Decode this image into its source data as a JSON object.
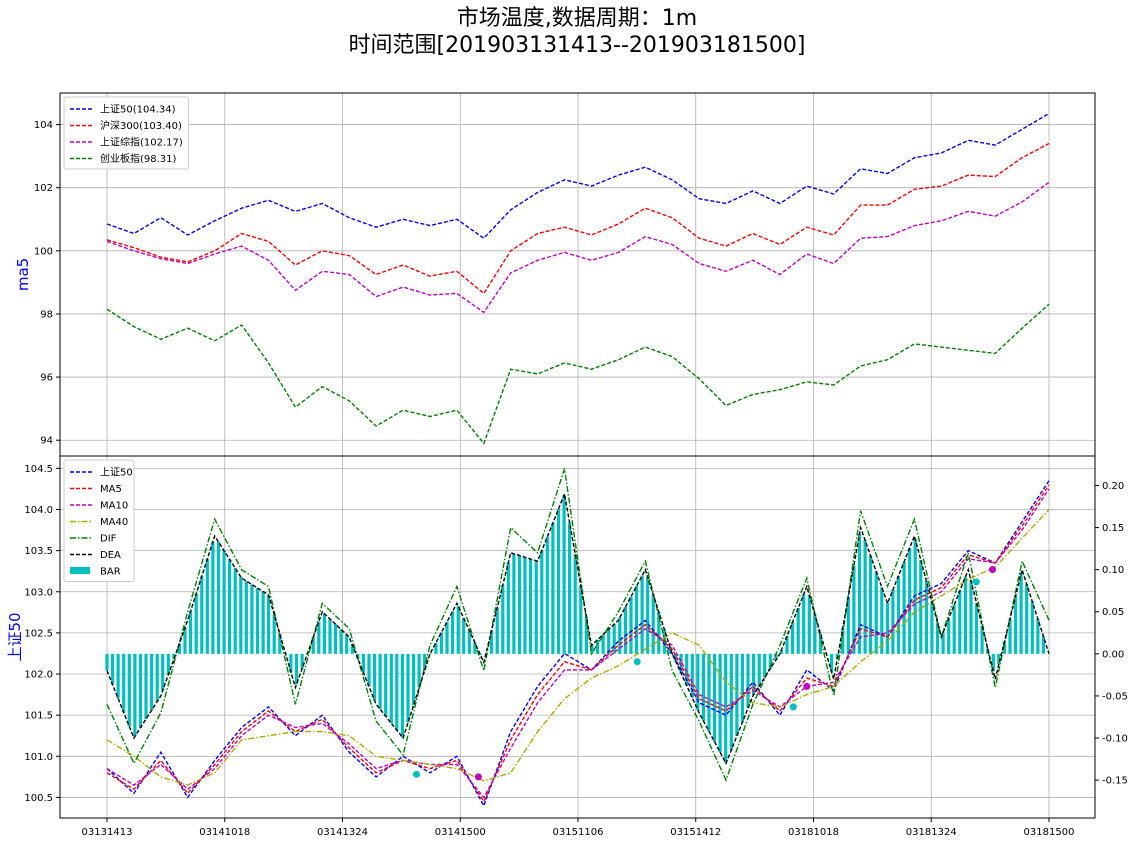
{
  "title_line1": "市场温度,数据周期：1m",
  "title_line2": "时间范围[201903131413--201903181500]",
  "chart_data": [
    {
      "type": "line",
      "ylabel": "ma5",
      "ylim": [
        93.5,
        105.0
      ],
      "yticks": [
        94,
        96,
        98,
        100,
        102,
        104
      ],
      "xticks": [
        "03131413",
        "03141018",
        "03141324",
        "03141500",
        "03151106",
        "03151412",
        "03181018",
        "03181324",
        "03181500"
      ],
      "legend_position": "upper-left",
      "grid": true,
      "series": [
        {
          "name": "上证50(104.34)",
          "color": "#0000ff",
          "values": [
            100.85,
            100.55,
            101.05,
            100.5,
            100.95,
            101.35,
            101.6,
            101.25,
            101.5,
            101.05,
            100.75,
            101.0,
            100.8,
            101.0,
            100.4,
            101.3,
            101.85,
            102.25,
            102.05,
            102.4,
            102.65,
            102.25,
            101.65,
            101.5,
            101.9,
            101.5,
            102.05,
            101.8,
            102.6,
            102.45,
            102.95,
            103.1,
            103.5,
            103.35,
            103.85,
            104.35
          ]
        },
        {
          "name": "沪深300(103.40)",
          "color": "#ff0000",
          "values": [
            100.35,
            100.1,
            99.8,
            99.65,
            100.0,
            100.55,
            100.3,
            99.55,
            100.0,
            99.85,
            99.25,
            99.55,
            99.2,
            99.35,
            98.65,
            100.0,
            100.55,
            100.75,
            100.5,
            100.85,
            101.35,
            101.05,
            100.4,
            100.15,
            100.55,
            100.2,
            100.75,
            100.5,
            101.45,
            101.45,
            101.95,
            102.05,
            102.4,
            102.35,
            102.95,
            103.4
          ]
        },
        {
          "name": "上证综指(102.17)",
          "color": "#bf00bf",
          "values": [
            100.3,
            100.0,
            99.75,
            99.6,
            99.9,
            100.15,
            99.7,
            98.75,
            99.35,
            99.25,
            98.55,
            98.85,
            98.6,
            98.65,
            98.05,
            99.3,
            99.7,
            99.95,
            99.7,
            99.95,
            100.45,
            100.2,
            99.6,
            99.35,
            99.7,
            99.25,
            99.9,
            99.6,
            100.4,
            100.45,
            100.8,
            100.95,
            101.25,
            101.1,
            101.55,
            102.17
          ]
        },
        {
          "name": "创业板指(98.31)",
          "color": "#008000",
          "values": [
            98.15,
            97.6,
            97.2,
            97.55,
            97.15,
            97.65,
            96.45,
            95.05,
            95.7,
            95.25,
            94.45,
            94.95,
            94.75,
            94.95,
            93.9,
            96.25,
            96.1,
            96.45,
            96.25,
            96.55,
            96.95,
            96.65,
            95.95,
            95.1,
            95.45,
            95.6,
            95.85,
            95.75,
            96.35,
            96.55,
            97.05,
            96.95,
            96.85,
            96.75,
            97.55,
            98.31
          ]
        }
      ]
    },
    {
      "type": "line",
      "ylabel": "上证50",
      "ylim": [
        100.25,
        104.65
      ],
      "yticks": [
        100.5,
        101.0,
        101.5,
        102.0,
        102.5,
        103.0,
        103.5,
        104.0,
        104.5
      ],
      "y2lim": [
        -0.195,
        0.235
      ],
      "y2ticks": [
        "0.20",
        "0.15",
        "0.10",
        "0.05",
        "0.00",
        "-0.05",
        "-0.10",
        "-0.15"
      ],
      "xticks": [
        "03131413",
        "03141018",
        "03141324",
        "03141500",
        "03151106",
        "03151412",
        "03181018",
        "03181324",
        "03181500"
      ],
      "legend_position": "upper-left",
      "grid": true,
      "series": [
        {
          "name": "上证50",
          "color": "#0000ff",
          "values": [
            100.85,
            100.55,
            101.05,
            100.5,
            100.95,
            101.35,
            101.6,
            101.25,
            101.5,
            101.05,
            100.75,
            101.0,
            100.8,
            101.0,
            100.4,
            101.3,
            101.85,
            102.25,
            102.05,
            102.4,
            102.65,
            102.25,
            101.65,
            101.5,
            101.9,
            101.5,
            102.05,
            101.8,
            102.6,
            102.45,
            102.95,
            103.1,
            103.5,
            103.35,
            103.85,
            104.35
          ]
        },
        {
          "name": "MA5",
          "color": "#ff0000",
          "values": [
            100.8,
            100.6,
            100.95,
            100.55,
            100.9,
            101.3,
            101.55,
            101.3,
            101.45,
            101.1,
            100.8,
            100.95,
            100.85,
            100.95,
            100.45,
            101.2,
            101.75,
            102.15,
            102.05,
            102.35,
            102.6,
            102.3,
            101.7,
            101.55,
            101.85,
            101.55,
            101.95,
            101.85,
            102.55,
            102.45,
            102.9,
            103.05,
            103.45,
            103.35,
            103.8,
            104.3
          ]
        },
        {
          "name": "MA10",
          "color": "#bf00bf",
          "values": [
            100.85,
            100.65,
            100.9,
            100.6,
            100.85,
            101.25,
            101.5,
            101.35,
            101.4,
            101.15,
            100.85,
            100.95,
            100.9,
            100.9,
            100.5,
            101.1,
            101.65,
            102.05,
            102.05,
            102.3,
            102.55,
            102.35,
            101.75,
            101.6,
            101.8,
            101.6,
            101.85,
            101.9,
            102.45,
            102.5,
            102.85,
            103.0,
            103.4,
            103.35,
            103.75,
            104.25
          ]
        },
        {
          "name": "MA40",
          "color": "#aaaa00",
          "values": [
            101.2,
            101.0,
            100.75,
            100.65,
            100.8,
            101.2,
            101.25,
            101.3,
            101.3,
            101.25,
            101.0,
            100.95,
            100.9,
            100.85,
            100.7,
            100.8,
            101.3,
            101.7,
            101.95,
            102.1,
            102.3,
            102.5,
            102.35,
            101.9,
            101.65,
            101.6,
            101.75,
            101.85,
            102.15,
            102.4,
            102.75,
            102.95,
            103.15,
            103.3,
            103.65,
            104.0
          ]
        },
        {
          "name": "DIF",
          "color": "#008000",
          "values": [
            -0.06,
            -0.13,
            -0.07,
            0.05,
            0.16,
            0.1,
            0.08,
            -0.06,
            0.06,
            0.03,
            -0.08,
            -0.12,
            0.01,
            0.08,
            -0.02,
            0.15,
            0.12,
            0.22,
            0.0,
            0.05,
            0.11,
            -0.02,
            -0.08,
            -0.15,
            -0.06,
            0.01,
            0.09,
            -0.05,
            0.17,
            0.08,
            0.16,
            0.02,
            0.12,
            -0.04,
            0.11,
            0.04
          ]
        },
        {
          "name": "DEA",
          "color": "#000000",
          "values": [
            -0.02,
            -0.1,
            -0.05,
            0.04,
            0.14,
            0.09,
            0.07,
            -0.04,
            0.05,
            0.02,
            -0.06,
            -0.1,
            0.0,
            0.06,
            -0.01,
            0.12,
            0.11,
            0.19,
            0.01,
            0.04,
            0.1,
            0.0,
            -0.07,
            -0.13,
            -0.05,
            0.0,
            0.08,
            -0.03,
            0.15,
            0.06,
            0.14,
            0.02,
            0.1,
            -0.03,
            0.1,
            0.0
          ]
        },
        {
          "name": "BAR",
          "color": "#00bfbf",
          "values": [
            -0.02,
            -0.1,
            -0.05,
            0.04,
            0.14,
            0.09,
            0.07,
            -0.04,
            0.05,
            0.02,
            -0.06,
            -0.1,
            0.0,
            0.06,
            -0.01,
            0.12,
            0.11,
            0.19,
            0.01,
            0.04,
            0.1,
            0.0,
            -0.07,
            -0.13,
            -0.05,
            0.0,
            0.08,
            -0.03,
            0.15,
            0.06,
            0.14,
            0.02,
            0.1,
            -0.03,
            0.1,
            0.0
          ]
        }
      ],
      "markers": [
        {
          "index": 11.5,
          "value": 100.78,
          "color": "#00bfbf"
        },
        {
          "index": 13.8,
          "value": 100.75,
          "color": "#bf00bf"
        },
        {
          "index": 19.7,
          "value": 102.15,
          "color": "#00bfbf"
        },
        {
          "index": 25.5,
          "value": 101.6,
          "color": "#00bfbf"
        },
        {
          "index": 32.3,
          "value": 103.12,
          "color": "#00bfbf"
        },
        {
          "index": 32.9,
          "value": 103.27,
          "color": "#bf00bf"
        },
        {
          "index": 26.0,
          "value": 101.85,
          "color": "#bf00bf"
        }
      ]
    }
  ]
}
